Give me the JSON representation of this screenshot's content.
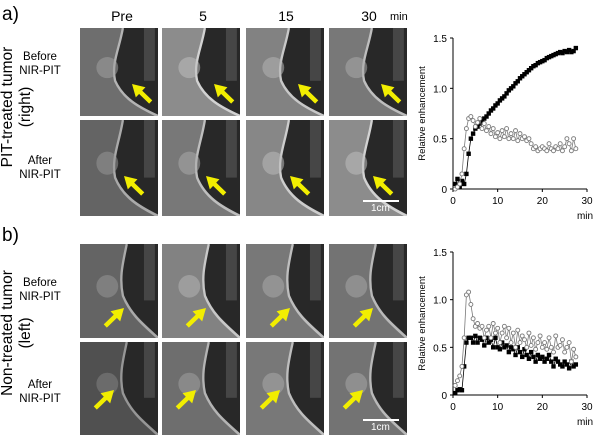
{
  "figure": {
    "panel_a_label": "a)",
    "panel_b_label": "b)",
    "time_points": [
      "Pre",
      "5",
      "15",
      "30"
    ],
    "time_unit": "min",
    "row_before_line1": "Before",
    "row_before_line2": "NIR-PIT",
    "row_after_line1": "After",
    "row_after_line2": "NIR-PIT",
    "panel_a_side_line1": "PIT-treated tumor",
    "panel_a_side_line2": "(right)",
    "panel_b_side_line1": "Non-treated tumor",
    "panel_b_side_line2": "(left)",
    "scale_bar_label": "1cm",
    "arrow_color": "#f2ee00"
  },
  "chart_data": [
    {
      "type": "scatter",
      "ylabel": "Relative enhancement",
      "xlabel": "min",
      "xlim": [
        0,
        30
      ],
      "ylim": [
        0,
        1.5
      ],
      "xticks": [
        0,
        10,
        20,
        30
      ],
      "yticks": [
        0,
        0.5,
        1.0,
        1.5
      ],
      "ytick_labels": [
        "0",
        "0.5",
        "1.0",
        "1.5"
      ],
      "xtick_labels": [
        "0",
        "10",
        "20",
        "30"
      ],
      "series": [
        {
          "marker": "filled-square",
          "color": "#000000",
          "x": [
            0.5,
            1,
            1.5,
            2,
            2.5,
            3,
            3.5,
            4,
            4.5,
            5,
            5.5,
            6,
            6.5,
            7,
            7.5,
            8,
            8.5,
            9,
            9.5,
            10,
            10.5,
            11,
            11.5,
            12,
            12.5,
            13,
            13.5,
            14,
            14.5,
            15,
            15.5,
            16,
            16.5,
            17,
            17.5,
            18,
            18.5,
            19,
            19.5,
            20,
            20.5,
            21,
            21.5,
            22,
            22.5,
            23,
            23.5,
            24,
            24.5,
            25,
            25.5,
            26,
            26.5,
            27,
            27.5
          ],
          "y": [
            0.05,
            0.1,
            0.02,
            0.08,
            0.05,
            0.15,
            0.35,
            0.5,
            0.55,
            0.6,
            0.62,
            0.65,
            0.68,
            0.7,
            0.72,
            0.75,
            0.78,
            0.8,
            0.83,
            0.85,
            0.88,
            0.9,
            0.92,
            0.95,
            0.98,
            1.0,
            1.02,
            1.05,
            1.07,
            1.1,
            1.12,
            1.14,
            1.16,
            1.18,
            1.2,
            1.22,
            1.23,
            1.25,
            1.26,
            1.27,
            1.28,
            1.3,
            1.31,
            1.32,
            1.33,
            1.34,
            1.35,
            1.36,
            1.35,
            1.37,
            1.36,
            1.38,
            1.36,
            1.37,
            1.4
          ]
        },
        {
          "marker": "open-circle",
          "color": "#7a7a7a",
          "x": [
            0.5,
            1,
            1.5,
            2,
            2.5,
            3,
            3.5,
            4,
            4.5,
            5,
            5.5,
            6,
            6.5,
            7,
            7.5,
            8,
            8.5,
            9,
            9.5,
            10,
            10.5,
            11,
            11.5,
            12,
            12.5,
            13,
            13.5,
            14,
            14.5,
            15,
            15.5,
            16,
            16.5,
            17,
            17.5,
            18,
            18.5,
            19,
            19.5,
            20,
            20.5,
            21,
            21.5,
            22,
            22.5,
            23,
            23.5,
            24,
            24.5,
            25,
            25.5,
            26,
            26.5,
            27,
            27.5
          ],
          "y": [
            0.0,
            0.02,
            0.05,
            0.15,
            0.4,
            0.6,
            0.7,
            0.72,
            0.68,
            0.62,
            0.66,
            0.7,
            0.6,
            0.65,
            0.58,
            0.62,
            0.55,
            0.6,
            0.52,
            0.56,
            0.5,
            0.58,
            0.52,
            0.6,
            0.5,
            0.55,
            0.5,
            0.58,
            0.48,
            0.55,
            0.5,
            0.52,
            0.48,
            0.5,
            0.45,
            0.4,
            0.42,
            0.38,
            0.4,
            0.42,
            0.4,
            0.38,
            0.45,
            0.4,
            0.38,
            0.42,
            0.4,
            0.45,
            0.38,
            0.42,
            0.5,
            0.45,
            0.38,
            0.5,
            0.4
          ]
        }
      ]
    },
    {
      "type": "scatter",
      "ylabel": "Relative enhancement",
      "xlabel": "min",
      "xlim": [
        0,
        30
      ],
      "ylim": [
        0,
        1.5
      ],
      "xticks": [
        0,
        10,
        20,
        30
      ],
      "yticks": [
        0,
        0.5,
        1.0,
        1.5
      ],
      "ytick_labels": [
        "0",
        "0.5",
        "1.0",
        "1.5"
      ],
      "xtick_labels": [
        "0",
        "10",
        "20",
        "30"
      ],
      "series": [
        {
          "marker": "filled-square",
          "color": "#000000",
          "x": [
            0.5,
            1,
            1.5,
            2,
            2.5,
            3,
            3.5,
            4,
            4.5,
            5,
            5.5,
            6,
            6.5,
            7,
            7.5,
            8,
            8.5,
            9,
            9.5,
            10,
            10.5,
            11,
            11.5,
            12,
            12.5,
            13,
            13.5,
            14,
            14.5,
            15,
            15.5,
            16,
            16.5,
            17,
            17.5,
            18,
            18.5,
            19,
            19.5,
            20,
            20.5,
            21,
            21.5,
            22,
            22.5,
            23,
            23.5,
            24,
            24.5,
            25,
            25.5,
            26,
            26.5,
            27,
            27.5
          ],
          "y": [
            0.02,
            0.05,
            0.06,
            0.05,
            0.3,
            0.55,
            0.6,
            0.6,
            0.55,
            0.62,
            0.55,
            0.6,
            0.58,
            0.52,
            0.6,
            0.55,
            0.58,
            0.5,
            0.6,
            0.5,
            0.48,
            0.55,
            0.5,
            0.52,
            0.45,
            0.5,
            0.48,
            0.42,
            0.5,
            0.45,
            0.4,
            0.48,
            0.42,
            0.38,
            0.45,
            0.4,
            0.35,
            0.42,
            0.38,
            0.4,
            0.35,
            0.38,
            0.42,
            0.35,
            0.3,
            0.38,
            0.35,
            0.32,
            0.3,
            0.35,
            0.32,
            0.28,
            0.35,
            0.3,
            0.32
          ]
        },
        {
          "marker": "open-circle",
          "color": "#7a7a7a",
          "x": [
            0.5,
            1,
            1.5,
            2,
            2.5,
            3,
            3.5,
            4,
            4.5,
            5,
            5.5,
            6,
            6.5,
            7,
            7.5,
            8,
            8.5,
            9,
            9.5,
            10,
            10.5,
            11,
            11.5,
            12,
            12.5,
            13,
            13.5,
            14,
            14.5,
            15,
            15.5,
            16,
            16.5,
            17,
            17.5,
            18,
            18.5,
            19,
            19.5,
            20,
            20.5,
            21,
            21.5,
            22,
            22.5,
            23,
            23.5,
            24,
            24.5,
            25,
            25.5,
            26,
            26.5,
            27,
            27.5
          ],
          "y": [
            0.1,
            0.15,
            0.2,
            0.3,
            0.6,
            1.05,
            1.08,
            0.95,
            0.8,
            0.72,
            0.75,
            0.7,
            0.72,
            0.6,
            0.68,
            0.72,
            0.6,
            0.75,
            0.65,
            0.7,
            0.55,
            0.65,
            0.72,
            0.6,
            0.7,
            0.55,
            0.65,
            0.5,
            0.68,
            0.55,
            0.62,
            0.58,
            0.5,
            0.65,
            0.52,
            0.6,
            0.48,
            0.55,
            0.62,
            0.5,
            0.55,
            0.48,
            0.6,
            0.5,
            0.45,
            0.62,
            0.5,
            0.52,
            0.58,
            0.45,
            0.5,
            0.55,
            0.35,
            0.48,
            0.4
          ]
        }
      ]
    }
  ]
}
